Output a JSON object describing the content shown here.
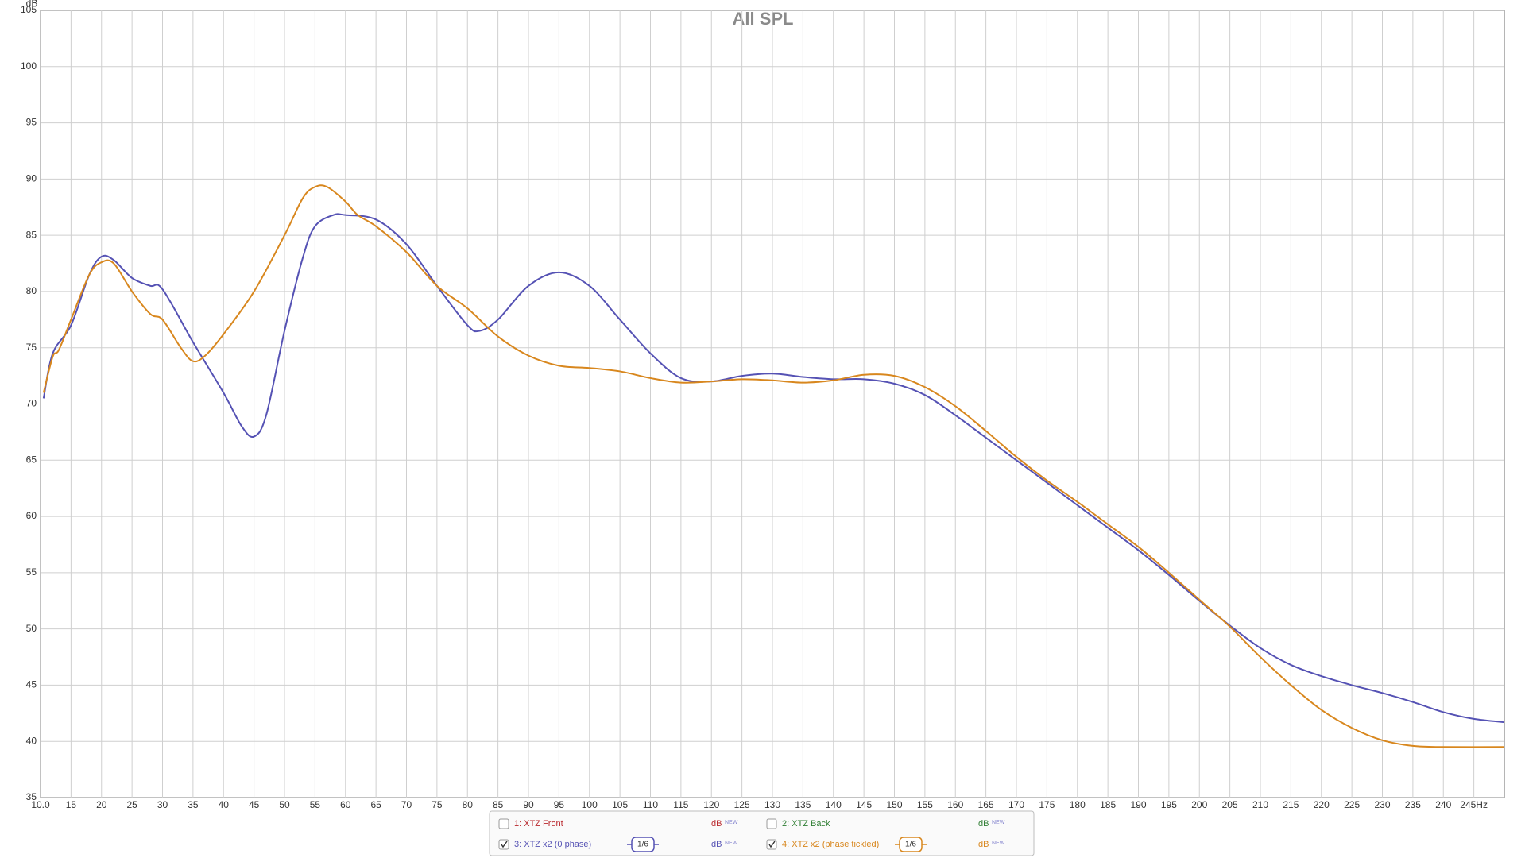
{
  "chart_data": {
    "type": "line",
    "title": "All SPL",
    "ylabel": "dB",
    "badge": "NEW",
    "smoothing": "1/6",
    "grid": true,
    "xlim": [
      10,
      250
    ],
    "ylim": [
      35,
      105
    ],
    "xticks": [
      {
        "value": 10,
        "label": "10.0"
      },
      15,
      20,
      25,
      30,
      35,
      40,
      45,
      50,
      55,
      60,
      65,
      70,
      75,
      80,
      85,
      90,
      95,
      100,
      105,
      110,
      115,
      120,
      125,
      130,
      135,
      140,
      145,
      150,
      155,
      160,
      165,
      170,
      175,
      180,
      185,
      190,
      195,
      200,
      205,
      210,
      215,
      220,
      225,
      230,
      235,
      240,
      {
        "value": 245,
        "label": "245Hz"
      }
    ],
    "yticks": [
      35,
      40,
      45,
      50,
      55,
      60,
      65,
      70,
      75,
      80,
      85,
      90,
      95,
      100,
      105
    ],
    "series": [
      {
        "name": "1: XTZ Front",
        "color": "#b8262b",
        "checked": false
      },
      {
        "name": "2: XTZ Back",
        "color": "#2e7d32",
        "checked": false
      },
      {
        "name": "3: XTZ x2 (0 phase)",
        "color": "#5552b4",
        "checked": true,
        "x": [
          10.5,
          12,
          15,
          18,
          20,
          22,
          25,
          28,
          30,
          35,
          40,
          43,
          45,
          47,
          50,
          53,
          55,
          58,
          60,
          65,
          70,
          75,
          80,
          82,
          85,
          90,
          95,
          100,
          105,
          110,
          115,
          120,
          125,
          130,
          135,
          140,
          145,
          150,
          155,
          160,
          165,
          170,
          175,
          180,
          185,
          190,
          195,
          200,
          205,
          210,
          215,
          220,
          225,
          230,
          235,
          240,
          245,
          250
        ],
        "values": [
          70.5,
          74.5,
          77,
          81.5,
          83.1,
          82.8,
          81.2,
          80.5,
          80.2,
          75.5,
          71,
          68,
          67.1,
          69,
          76.5,
          83,
          85.8,
          86.8,
          86.8,
          86.4,
          84.2,
          80.5,
          77,
          76.5,
          77.5,
          80.5,
          81.7,
          80.5,
          77.5,
          74.5,
          72.3,
          72,
          72.5,
          72.7,
          72.4,
          72.2,
          72.2,
          71.8,
          70.8,
          69,
          67,
          65,
          63,
          61,
          59,
          57,
          54.8,
          52.5,
          50.3,
          48.3,
          46.8,
          45.8,
          45,
          44.3,
          43.5,
          42.6,
          42,
          41.7
        ]
      },
      {
        "name": "4: XTZ x2 (phase tickled)",
        "color": "#d8871e",
        "checked": true,
        "x": [
          10.5,
          12,
          13,
          15,
          18,
          20,
          22,
          25,
          28,
          30,
          33,
          35,
          37,
          40,
          45,
          50,
          53,
          55,
          57,
          60,
          62,
          65,
          70,
          75,
          80,
          85,
          90,
          95,
          100,
          105,
          110,
          115,
          120,
          125,
          130,
          135,
          140,
          145,
          150,
          155,
          160,
          165,
          170,
          175,
          180,
          185,
          190,
          195,
          200,
          205,
          210,
          215,
          220,
          225,
          230,
          235,
          240,
          250
        ],
        "values": [
          71,
          74.2,
          74.8,
          77.5,
          81.5,
          82.6,
          82.5,
          80,
          78,
          77.5,
          75,
          73.8,
          74.3,
          76.2,
          80,
          85,
          88.3,
          89.3,
          89.3,
          88,
          86.8,
          85.8,
          83.5,
          80.5,
          78.5,
          76,
          74.3,
          73.4,
          73.2,
          72.9,
          72.3,
          71.9,
          72,
          72.2,
          72.1,
          71.9,
          72.1,
          72.6,
          72.5,
          71.5,
          69.8,
          67.6,
          65.3,
          63.2,
          61.3,
          59.3,
          57.3,
          55,
          52.6,
          50.2,
          47.5,
          45,
          42.8,
          41.2,
          40.1,
          39.6,
          39.5,
          39.5
        ]
      }
    ]
  }
}
